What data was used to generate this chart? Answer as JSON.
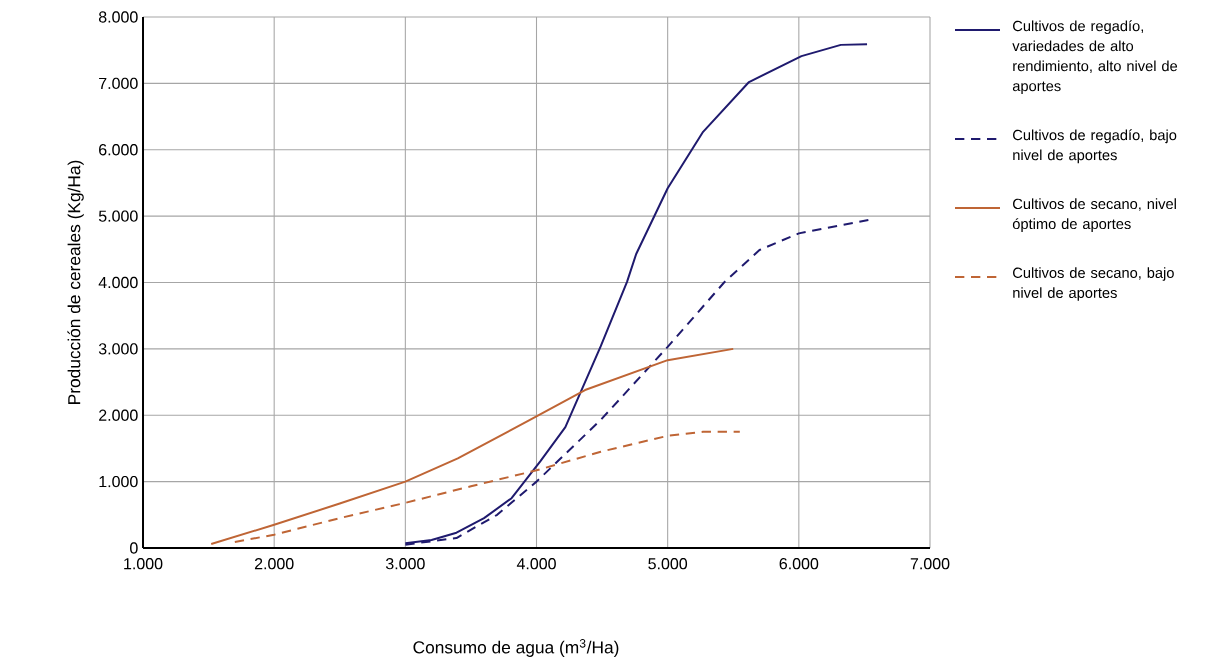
{
  "chart_data": {
    "type": "line",
    "xlabel": "Consumo de agua (m$^{3}$/Ha)",
    "ylabel": "Producción de cereales (Kg/Ha)",
    "xlim": [
      1000,
      7000
    ],
    "ylim": [
      0,
      8000
    ],
    "xticks": [
      {
        "value": 1000,
        "label": "1.000"
      },
      {
        "value": 2000,
        "label": "2.000"
      },
      {
        "value": 3000,
        "label": "3.000"
      },
      {
        "value": 4000,
        "label": "4.000"
      },
      {
        "value": 5000,
        "label": "5.000"
      },
      {
        "value": 6000,
        "label": "6.000"
      },
      {
        "value": 7000,
        "label": "7.000"
      }
    ],
    "yticks": [
      0,
      {
        "value": 1000,
        "label": "1.000"
      },
      {
        "value": 2000,
        "label": "2.000"
      },
      {
        "value": 3000,
        "label": "3.000"
      },
      {
        "value": 4000,
        "label": "4.000"
      },
      {
        "value": 5000,
        "label": "5.000"
      },
      {
        "value": 6000,
        "label": "6.000"
      },
      {
        "value": 7000,
        "label": "7.000"
      },
      {
        "value": 8000,
        "label": "8.000"
      }
    ],
    "grid": true,
    "legend": "right",
    "marker": "none",
    "series": [
      {
        "name": "Cultivos de regadío, variedades de alto rendimiento, alto nivel de aportes",
        "color": "#1f1a6e",
        "line_style": "solid",
        "x": [
          3000,
          3200,
          3390,
          3600,
          3810,
          4030,
          4220,
          4490,
          4690,
          4760,
          5000,
          5270,
          5620,
          6020,
          6320,
          6520
        ],
        "values": [
          70,
          120,
          230,
          450,
          750,
          1310,
          1820,
          3040,
          4010,
          4430,
          5420,
          6270,
          7020,
          7410,
          7580,
          7590
        ]
      },
      {
        "name": "Cultivos de regadío, bajo nivel de aportes",
        "color": "#1f1a6e",
        "line_style": "dashed",
        "x": [
          3000,
          3390,
          3700,
          4000,
          4490,
          5000,
          5430,
          5700,
          6000,
          6530
        ],
        "values": [
          50,
          150,
          500,
          1000,
          1930,
          3030,
          4000,
          4490,
          4740,
          4940
        ]
      },
      {
        "name": "Cultivos de secano, nivel óptimo de aportes",
        "color": "#bf6535",
        "line_style": "solid",
        "x": [
          1520,
          2000,
          2500,
          3000,
          3400,
          3950,
          4370,
          5000,
          5500
        ],
        "values": [
          60,
          350,
          670,
          1000,
          1350,
          1930,
          2380,
          2830,
          3000
        ]
      },
      {
        "name": "Cultivos de secano, bajo nivel de aportes",
        "color": "#bf6535",
        "line_style": "dashed",
        "x": [
          1700,
          2000,
          2500,
          3000,
          3500,
          4000,
          4490,
          5000,
          5270,
          5550
        ],
        "values": [
          90,
          200,
          450,
          680,
          930,
          1170,
          1450,
          1690,
          1750,
          1750
        ]
      }
    ]
  }
}
